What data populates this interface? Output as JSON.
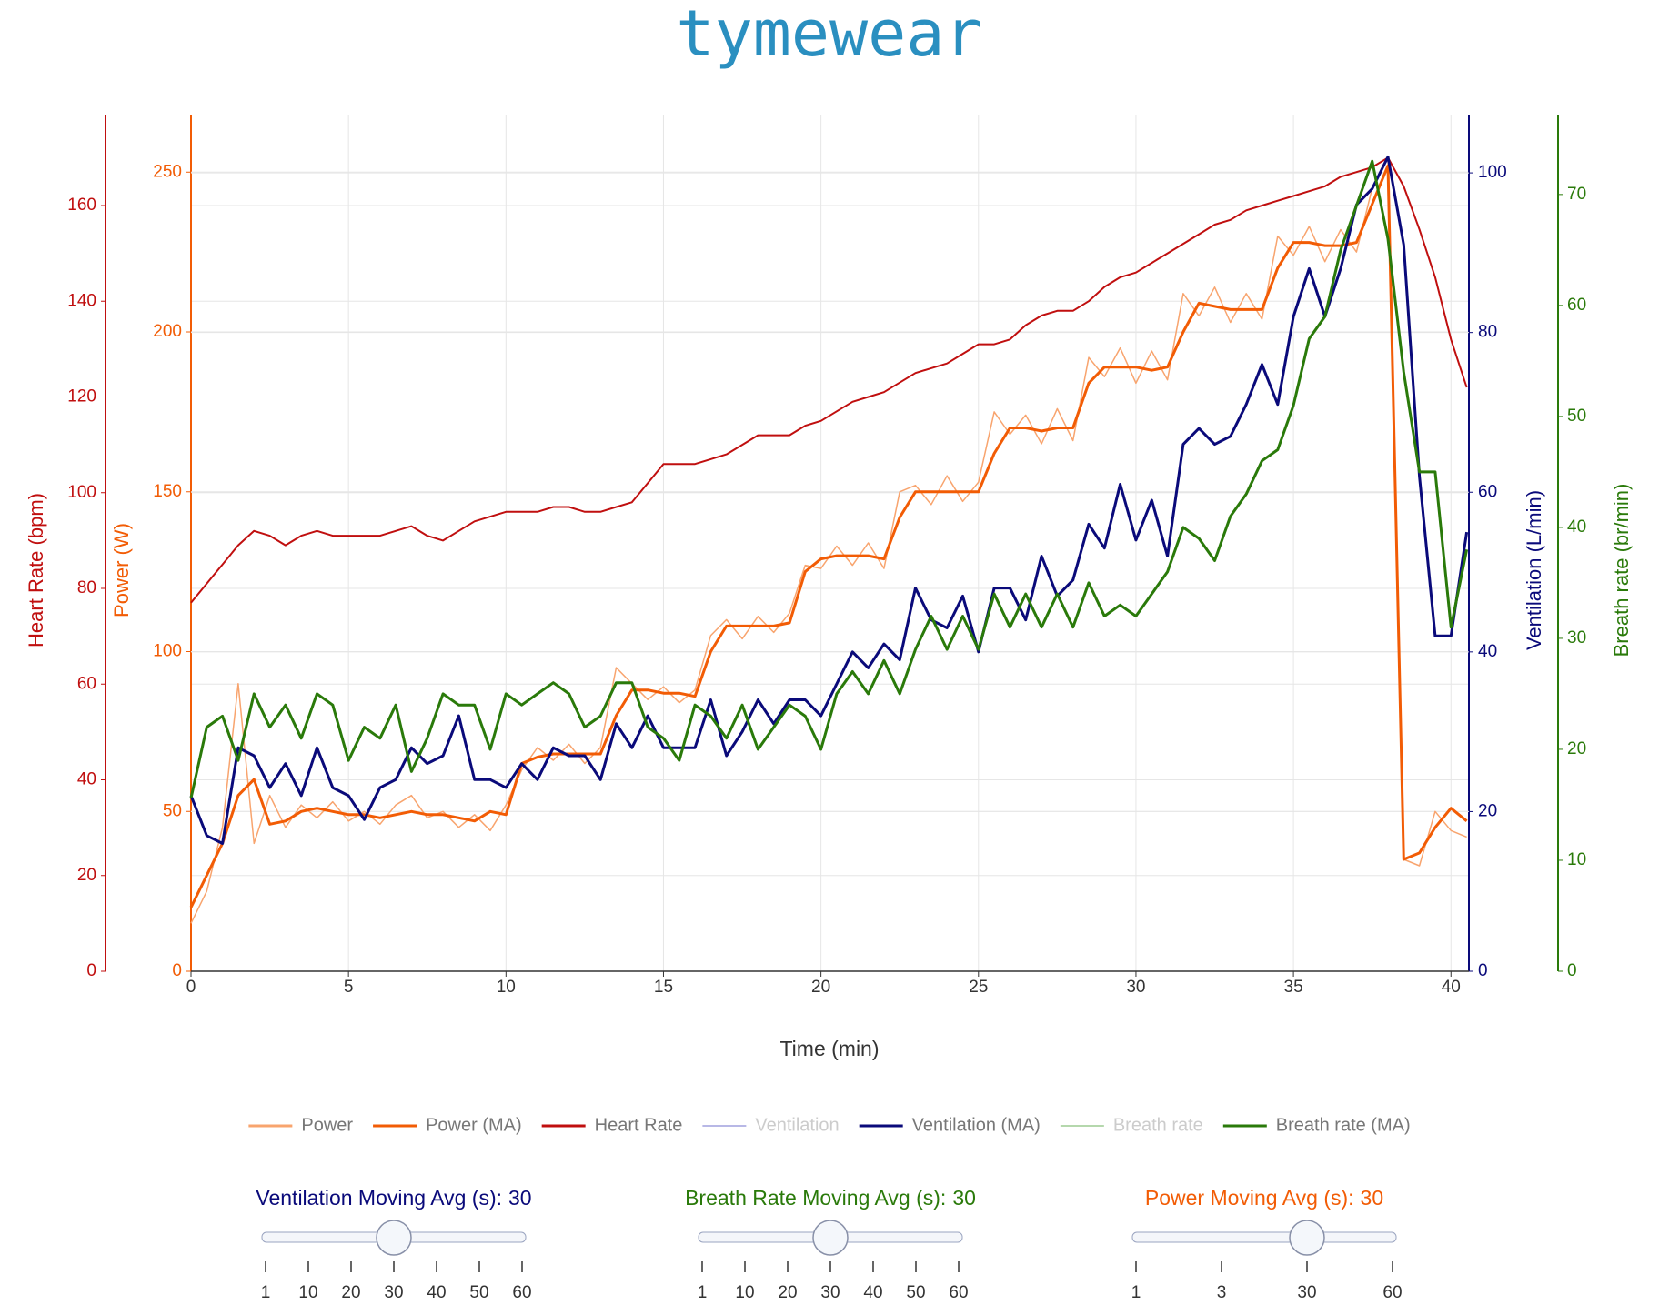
{
  "chart_data": {
    "type": "line",
    "title": "tymewear",
    "xlabel": "Time (min)",
    "xlim": [
      0,
      40.57
    ],
    "xticks": [
      0,
      5,
      10,
      15,
      20,
      25,
      30,
      35,
      40
    ],
    "grid": true,
    "x": [
      0,
      0.5,
      1,
      1.5,
      2,
      2.5,
      3,
      3.5,
      4,
      4.5,
      5,
      5.5,
      6,
      6.5,
      7,
      7.5,
      8,
      8.5,
      9,
      9.5,
      10,
      10.5,
      11,
      11.5,
      12,
      12.5,
      13,
      13.5,
      14,
      14.5,
      15,
      15.5,
      16,
      16.5,
      17,
      17.5,
      18,
      18.5,
      19,
      19.5,
      20,
      20.5,
      21,
      21.5,
      22,
      22.5,
      23,
      23.5,
      24,
      24.5,
      25,
      25.5,
      26,
      26.5,
      27,
      27.5,
      28,
      28.5,
      29,
      29.5,
      30,
      30.5,
      31,
      31.5,
      32,
      32.5,
      33,
      33.5,
      34,
      34.5,
      35,
      35.5,
      36,
      36.5,
      37,
      37.5,
      38,
      38.5,
      39,
      39.5,
      40,
      40.5
    ],
    "y_axes": [
      {
        "label": "Heart Rate (bpm)",
        "color": "#c00f0f",
        "ylim": [
          0,
          179
        ],
        "yticks": [
          0,
          20,
          40,
          60,
          80,
          100,
          120,
          140,
          160
        ]
      },
      {
        "label": "Power (W)",
        "color": "#f25c05",
        "ylim": [
          0,
          268
        ],
        "yticks": [
          0,
          50,
          100,
          150,
          200,
          250
        ]
      },
      {
        "label": "Ventilation (L/min)",
        "color": "#0a0a7a",
        "ylim": [
          0,
          107.3
        ],
        "yticks": [
          0,
          20,
          40,
          60,
          80,
          100
        ]
      },
      {
        "label": "Breath rate (br/min)",
        "color": "#2a7a0a",
        "ylim": [
          0,
          77.2
        ],
        "yticks": [
          0,
          10,
          20,
          30,
          40,
          50,
          60,
          70
        ]
      }
    ],
    "series": [
      {
        "name": "Power",
        "color": "#f8a46e",
        "axis": 1,
        "width": 1.5,
        "visible": true,
        "values": [
          15,
          25,
          45,
          90,
          40,
          55,
          45,
          52,
          48,
          53,
          47,
          50,
          46,
          52,
          55,
          48,
          50,
          45,
          49,
          44,
          52,
          63,
          70,
          66,
          71,
          65,
          70,
          95,
          90,
          85,
          89,
          84,
          88,
          105,
          110,
          104,
          111,
          106,
          112,
          127,
          126,
          133,
          127,
          134,
          126,
          150,
          152,
          146,
          155,
          147,
          153,
          175,
          168,
          174,
          165,
          176,
          166,
          192,
          186,
          195,
          184,
          194,
          185,
          212,
          205,
          214,
          203,
          212,
          204,
          230,
          224,
          233,
          222,
          232,
          225,
          245,
          255,
          35,
          33,
          50,
          44,
          42
        ]
      },
      {
        "name": "Power (MA)",
        "color": "#f25c05",
        "axis": 1,
        "width": 3,
        "visible": true,
        "values": [
          20,
          30,
          40,
          55,
          60,
          46,
          47,
          50,
          51,
          50,
          49,
          49,
          48,
          49,
          50,
          49,
          49,
          48,
          47,
          50,
          49,
          65,
          67,
          68,
          68,
          68,
          68,
          80,
          88,
          88,
          87,
          87,
          86,
          100,
          108,
          108,
          108,
          108,
          109,
          125,
          129,
          130,
          130,
          130,
          129,
          142,
          150,
          150,
          150,
          150,
          150,
          162,
          170,
          170,
          169,
          170,
          170,
          184,
          189,
          189,
          189,
          188,
          189,
          200,
          209,
          208,
          207,
          207,
          207,
          220,
          228,
          228,
          227,
          227,
          228,
          240,
          252,
          35,
          37,
          45,
          51,
          47
        ]
      },
      {
        "name": "Heart Rate",
        "color": "#c00f0f",
        "axis": 0,
        "width": 2,
        "visible": true,
        "values": [
          77,
          81,
          85,
          89,
          92,
          91,
          89,
          91,
          92,
          91,
          91,
          91,
          91,
          92,
          93,
          91,
          90,
          92,
          94,
          95,
          96,
          96,
          96,
          97,
          97,
          96,
          96,
          97,
          98,
          102,
          106,
          106,
          106,
          107,
          108,
          110,
          112,
          112,
          112,
          114,
          115,
          117,
          119,
          120,
          121,
          123,
          125,
          126,
          127,
          129,
          131,
          131,
          132,
          135,
          137,
          138,
          138,
          140,
          143,
          145,
          146,
          148,
          150,
          152,
          154,
          156,
          157,
          159,
          160,
          161,
          162,
          163,
          164,
          166,
          167,
          168,
          170,
          164,
          155,
          145,
          132,
          122
        ]
      },
      {
        "name": "Ventilation",
        "color": "#b8b8e6",
        "axis": 2,
        "visible": false
      },
      {
        "name": "Ventilation (MA)",
        "color": "#0a0a7a",
        "axis": 2,
        "width": 3,
        "visible": true,
        "values": [
          22,
          17,
          16,
          28,
          27,
          23,
          26,
          22,
          28,
          23,
          22,
          19,
          23,
          24,
          28,
          26,
          27,
          32,
          24,
          24,
          23,
          26,
          24,
          28,
          27,
          27,
          24,
          31,
          28,
          32,
          28,
          28,
          28,
          34,
          27,
          30,
          34,
          31,
          34,
          34,
          32,
          36,
          40,
          38,
          41,
          39,
          48,
          44,
          43,
          47,
          40,
          48,
          48,
          44,
          52,
          47,
          49,
          56,
          53,
          61,
          54,
          59,
          52,
          66,
          68,
          66,
          67,
          71,
          76,
          71,
          82,
          88,
          82,
          88,
          96,
          98,
          102,
          91,
          62,
          42,
          42,
          55
        ]
      },
      {
        "name": "Breath rate",
        "color": "#b5d8ad",
        "axis": 3,
        "visible": false
      },
      {
        "name": "Breath rate (MA)",
        "color": "#2a7a0a",
        "axis": 3,
        "width": 3,
        "visible": true,
        "values": [
          15.6,
          22,
          23,
          19,
          25,
          22,
          24,
          21,
          25,
          24,
          19,
          22,
          21,
          24,
          18,
          21,
          25,
          24,
          24,
          20,
          25,
          24,
          25,
          26,
          25,
          22,
          23,
          26,
          26,
          22,
          21,
          19,
          24,
          23,
          21,
          24,
          20,
          22,
          24,
          23,
          20,
          25,
          27,
          25,
          28,
          25,
          29,
          32,
          29,
          32,
          29,
          34,
          31,
          34,
          31,
          34,
          31,
          35,
          32,
          33,
          32,
          34,
          36,
          40,
          39,
          37,
          41,
          43,
          46,
          47,
          51,
          57,
          59,
          65,
          69,
          73,
          66,
          54,
          45,
          45,
          31,
          38
        ]
      }
    ]
  },
  "controls": [
    {
      "label": "Ventilation Moving Avg (s):",
      "value": 30,
      "color": "#0a0a7a",
      "ticks": [
        1,
        10,
        20,
        30,
        40,
        50,
        60
      ]
    },
    {
      "label": "Breath Rate Moving Avg (s):",
      "value": 30,
      "color": "#2a7a0a",
      "ticks": [
        1,
        10,
        20,
        30,
        40,
        50,
        60
      ]
    },
    {
      "label": "Power Moving Avg (s):",
      "value": 30,
      "color": "#f25c05",
      "ticks": [
        1,
        3,
        30,
        60
      ]
    }
  ]
}
